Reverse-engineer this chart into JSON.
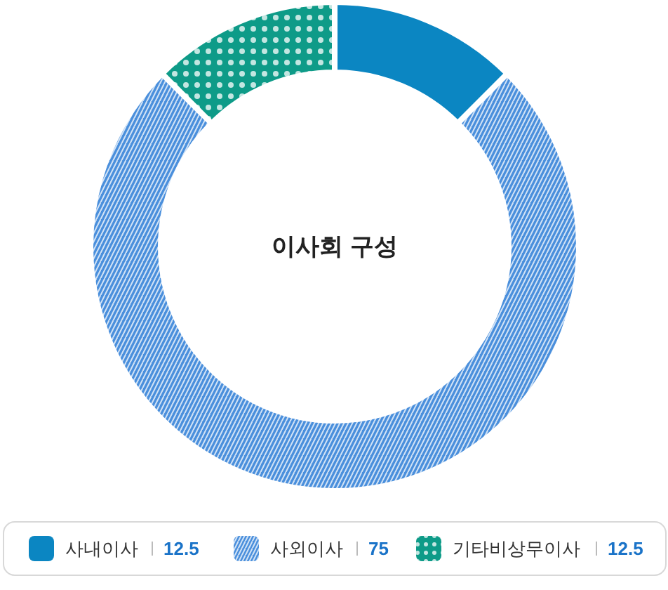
{
  "chart_data": {
    "type": "donut",
    "title": "이사회 구성",
    "categories": [
      "사내이사",
      "사외이사",
      "기타비상무이사"
    ],
    "values": [
      12.5,
      75,
      12.5
    ],
    "colors": [
      "#0b86c2",
      "#4a8fdc",
      "#0e9b88"
    ],
    "data_labels": true,
    "legend": "bottom"
  }
}
